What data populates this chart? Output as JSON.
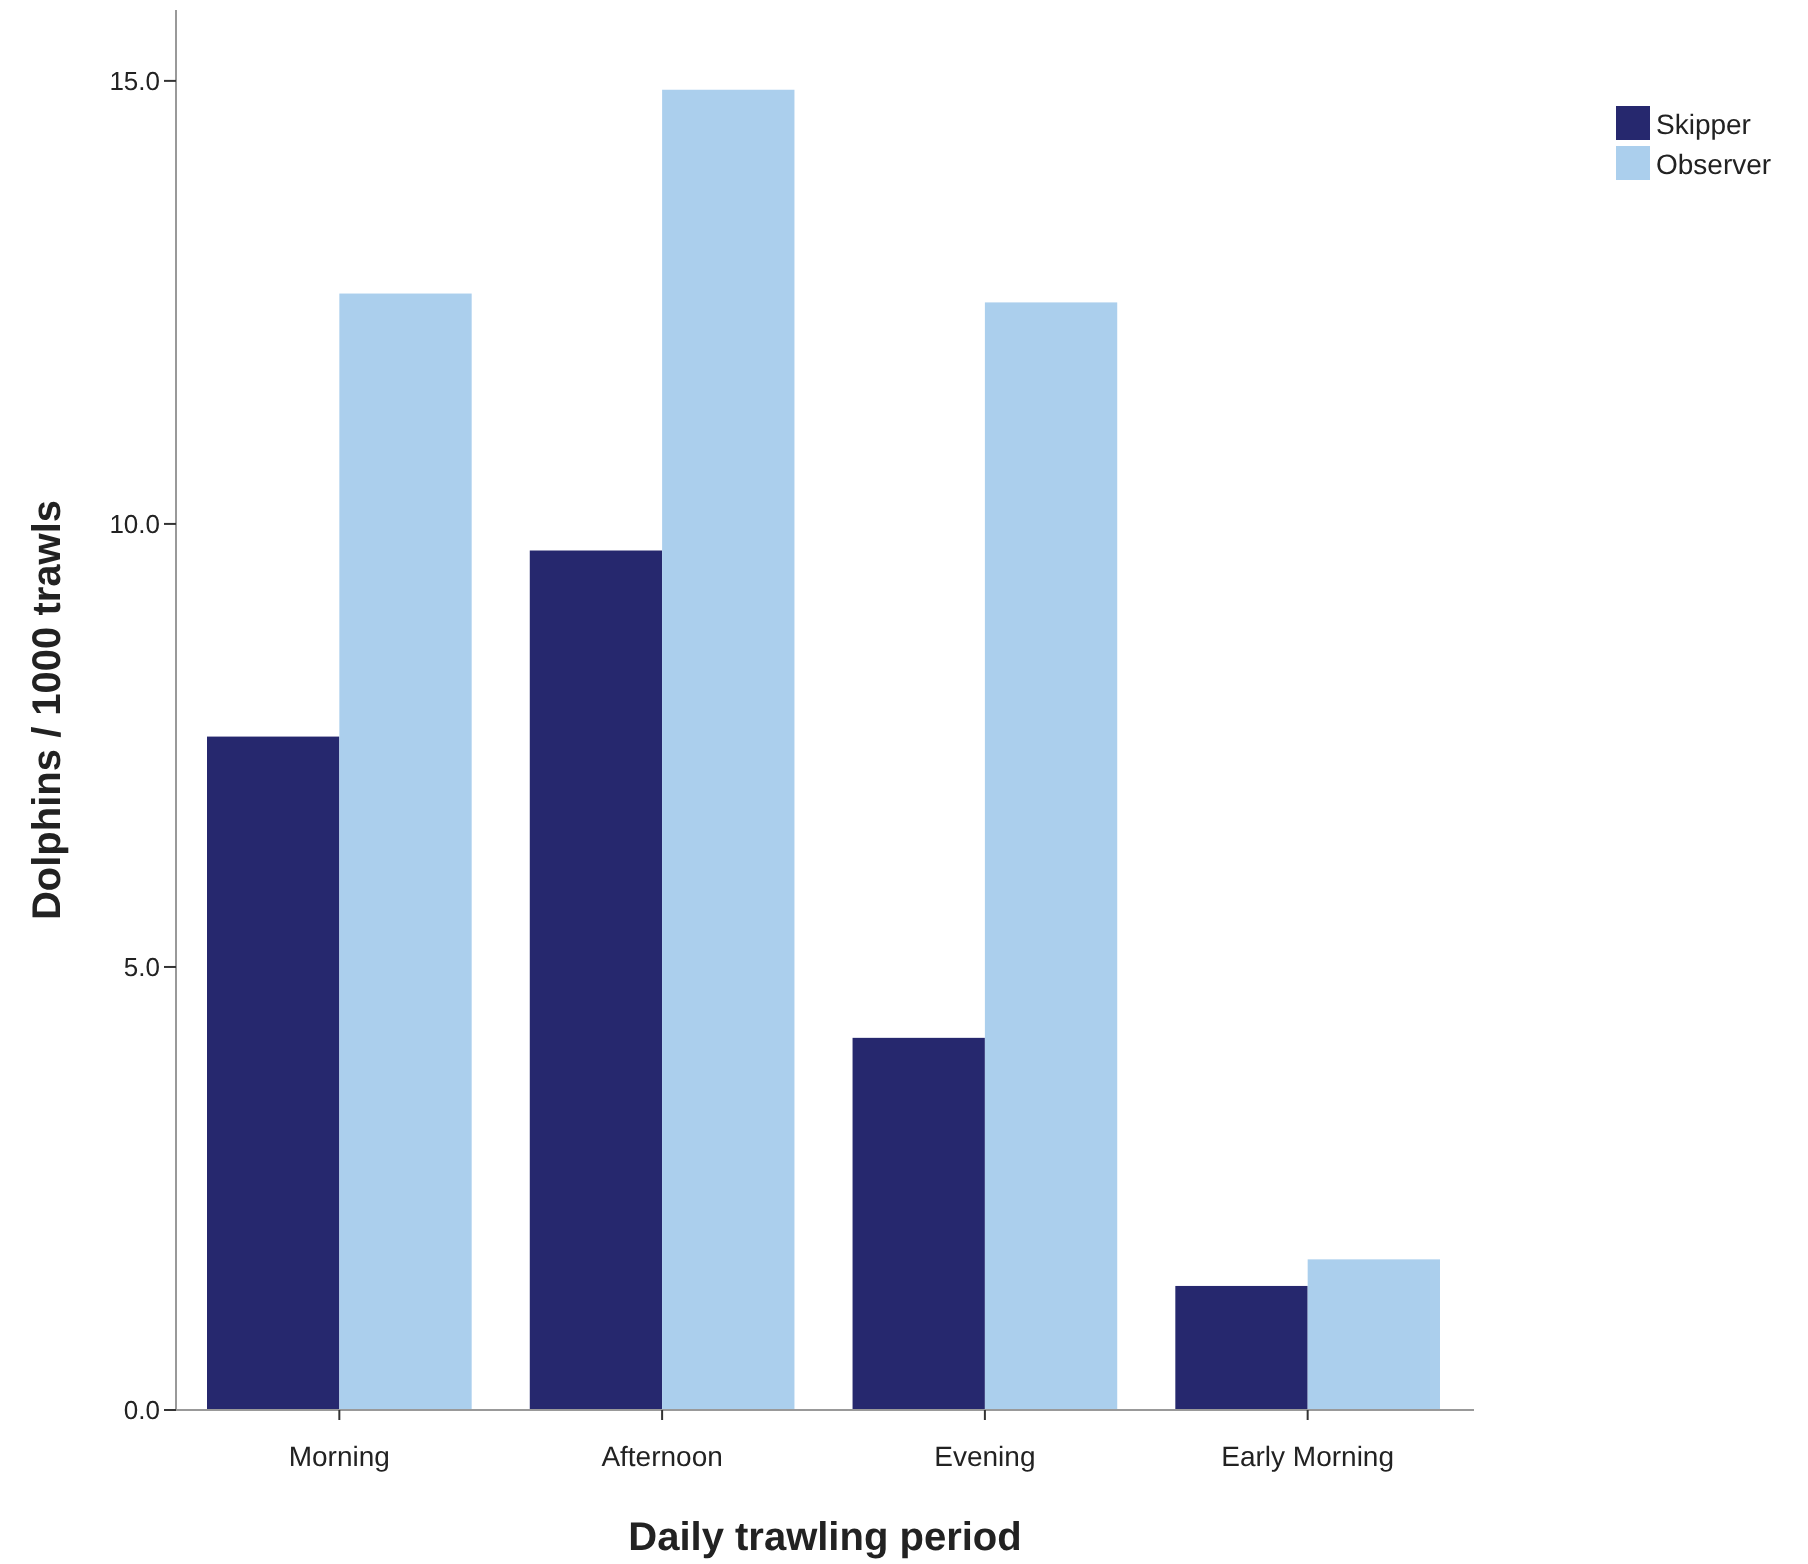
{
  "chart_data": {
    "type": "bar",
    "xlabel": "Daily trawling period",
    "ylabel": "Dolphins / 1000 trawls",
    "categories": [
      "Morning",
      "Afternoon",
      "Evening",
      "Early Morning"
    ],
    "series": [
      {
        "name": "Skipper",
        "color": "#26286e",
        "values": [
          7.6,
          9.7,
          4.2,
          1.4
        ]
      },
      {
        "name": "Observer",
        "color": "#abcfed",
        "values": [
          12.6,
          14.9,
          12.5,
          1.7
        ]
      }
    ],
    "ylim": [
      0,
      15.8
    ],
    "yticks": [
      {
        "value": 0,
        "label": "0.0"
      },
      {
        "value": 5,
        "label": "5.0"
      },
      {
        "value": 10,
        "label": "10.0"
      },
      {
        "value": 15,
        "label": "15.0"
      }
    ],
    "grid": false,
    "legend": "top right"
  }
}
